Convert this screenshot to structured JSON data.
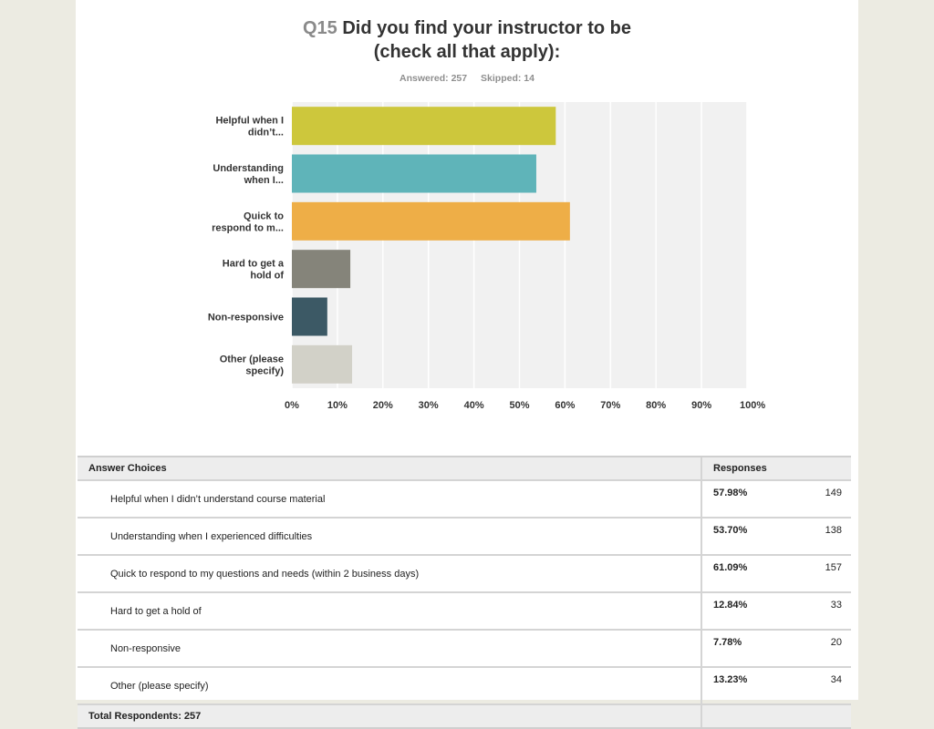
{
  "header": {
    "qnum": "Q15",
    "title_line1": "Did you find your instructor to be",
    "title_line2": "(check all that apply):",
    "answered": "Answered: 257",
    "skipped": "Skipped: 14"
  },
  "chart_data": {
    "type": "bar",
    "orientation": "horizontal",
    "categories": [
      [
        "Helpful when I",
        "didn’t..."
      ],
      [
        "Understanding",
        "when I..."
      ],
      [
        "Quick to",
        "respond to m..."
      ],
      [
        "Hard to get a",
        "hold of"
      ],
      [
        "Non-responsive"
      ],
      [
        "Other (please",
        "specify)"
      ]
    ],
    "values": [
      57.98,
      53.7,
      61.09,
      12.84,
      7.78,
      13.23
    ],
    "colors": [
      "#cdc73c",
      "#5fb4b9",
      "#eeae47",
      "#85847a",
      "#3c5965",
      "#d2d1c8"
    ],
    "xlim": [
      0,
      100
    ],
    "xticks": [
      "0%",
      "10%",
      "20%",
      "30%",
      "40%",
      "50%",
      "60%",
      "70%",
      "80%",
      "90%",
      "100%"
    ],
    "grid": true
  },
  "table": {
    "headers": {
      "choices": "Answer Choices",
      "responses": "Responses"
    },
    "rows": [
      {
        "choice": "Helpful when I didn’t understand course material",
        "pct": "57.98%",
        "count": "149"
      },
      {
        "choice": "Understanding when I experienced difficulties",
        "pct": "53.70%",
        "count": "138"
      },
      {
        "choice": "Quick to respond to my questions and needs (within 2 business days)",
        "pct": "61.09%",
        "count": "157"
      },
      {
        "choice": "Hard to get a hold of",
        "pct": "12.84%",
        "count": "33"
      },
      {
        "choice": "Non-responsive",
        "pct": "7.78%",
        "count": "20"
      },
      {
        "choice": "Other (please specify)",
        "pct": "13.23%",
        "count": "34"
      }
    ],
    "total": "Total Respondents: 257"
  }
}
